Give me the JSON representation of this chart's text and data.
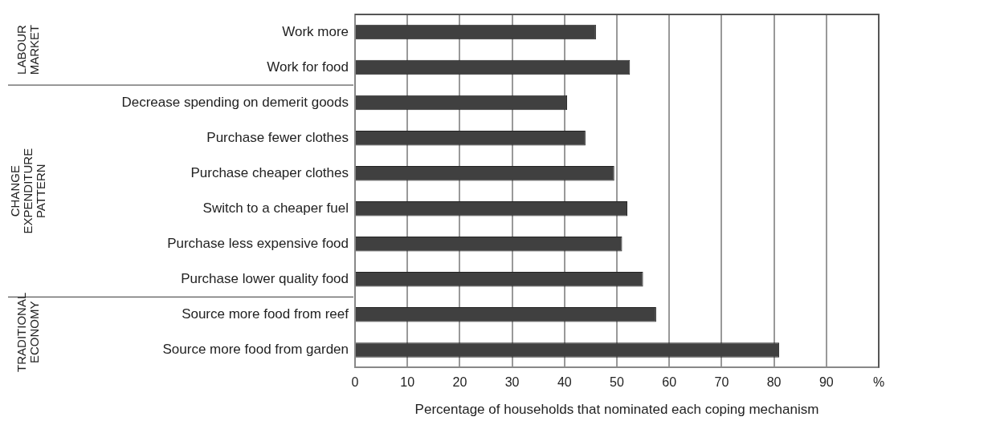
{
  "chart_data": {
    "type": "bar",
    "orientation": "horizontal",
    "xlabel": "Percentage of households that nominated each coping mechanism",
    "categories": [
      "Work more",
      "Work for food",
      "Decrease spending on demerit goods",
      "Purchase fewer clothes",
      "Purchase cheaper clothes",
      "Switch to a cheaper fuel",
      "Purchase less expensive food",
      "Purchase lower quality food",
      "Source more food from reef",
      "Source more food from garden"
    ],
    "values": [
      46,
      52.5,
      40.5,
      44,
      49.5,
      52,
      51,
      55,
      57.5,
      81
    ],
    "color": "#404040",
    "xlim": [
      0,
      100
    ],
    "xticks": [
      0,
      10,
      20,
      30,
      40,
      50,
      60,
      70,
      80,
      90,
      {
        "value": 100,
        "label": "%"
      }
    ],
    "grid": "x",
    "legend": false,
    "annotations": [
      "LABOUR MARKET",
      "CHANGE EXPENDITURE PATTERN",
      "TRADITIONAL ECONOMY"
    ]
  }
}
